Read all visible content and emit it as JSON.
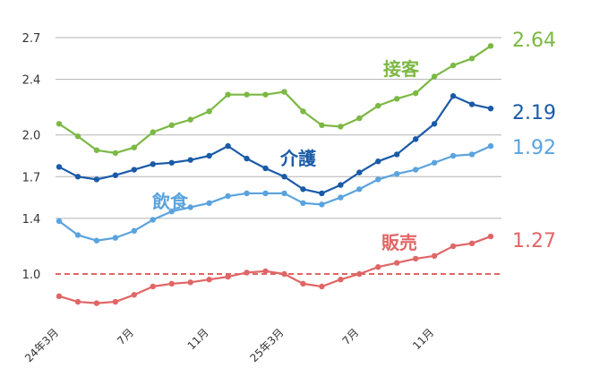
{
  "chart_data": {
    "type": "line",
    "x": [
      "24年3月",
      "4月",
      "5月",
      "6月",
      "7月",
      "8月",
      "9月",
      "10月",
      "11月",
      "12月",
      "1月",
      "2月",
      "25年3月",
      "4月",
      "5月",
      "6月",
      "7月",
      "8月",
      "9月",
      "10月",
      "11月",
      "12月",
      "1月",
      "2月"
    ],
    "x_tick_labels": [
      {
        "index": 0,
        "label": "24年3月"
      },
      {
        "index": 4,
        "label": "7月"
      },
      {
        "index": 8,
        "label": "11月"
      },
      {
        "index": 12,
        "label": "25年3月"
      },
      {
        "index": 16,
        "label": "7月"
      },
      {
        "index": 20,
        "label": "11月"
      }
    ],
    "y_ticks": [
      "1.0",
      "1.4",
      "1.7",
      "2.0",
      "2.4",
      "2.7"
    ],
    "ylim": [
      0.8,
      2.8
    ],
    "reference_line": 1.0,
    "grid": true,
    "title": "",
    "xlabel": "",
    "ylabel": "",
    "series": [
      {
        "name": "接客",
        "color": "#7cb844",
        "end_label": "2.64",
        "values": [
          2.08,
          1.99,
          1.89,
          1.87,
          1.91,
          2.02,
          2.07,
          2.11,
          2.17,
          2.29,
          2.29,
          2.29,
          2.31,
          2.17,
          2.07,
          2.06,
          2.12,
          2.21,
          2.26,
          2.3,
          2.42,
          2.5,
          2.55,
          2.64
        ]
      },
      {
        "name": "介護",
        "color": "#1a5aa8",
        "end_label": "2.19",
        "values": [
          1.77,
          1.7,
          1.68,
          1.71,
          1.75,
          1.79,
          1.8,
          1.82,
          1.85,
          1.92,
          1.83,
          1.76,
          1.7,
          1.61,
          1.58,
          1.64,
          1.73,
          1.81,
          1.86,
          1.97,
          2.08,
          2.28,
          2.22,
          2.19
        ]
      },
      {
        "name": "飲食",
        "color": "#5aa3de",
        "end_label": "1.92",
        "values": [
          1.38,
          1.28,
          1.24,
          1.26,
          1.31,
          1.39,
          1.45,
          1.48,
          1.51,
          1.56,
          1.58,
          1.58,
          1.58,
          1.51,
          1.5,
          1.55,
          1.61,
          1.68,
          1.72,
          1.75,
          1.8,
          1.85,
          1.86,
          1.92
        ]
      },
      {
        "name": "販売",
        "color": "#e06666",
        "end_label": "1.27",
        "values": [
          0.84,
          0.8,
          0.79,
          0.8,
          0.85,
          0.91,
          0.93,
          0.94,
          0.96,
          0.98,
          1.01,
          1.02,
          1.0,
          0.93,
          0.91,
          0.96,
          1.0,
          1.05,
          1.08,
          1.11,
          1.13,
          1.2,
          1.22,
          1.27
        ]
      }
    ]
  },
  "colors": {
    "grid": "#b3b3b3",
    "reference": "#e06666",
    "text": "#333333"
  }
}
